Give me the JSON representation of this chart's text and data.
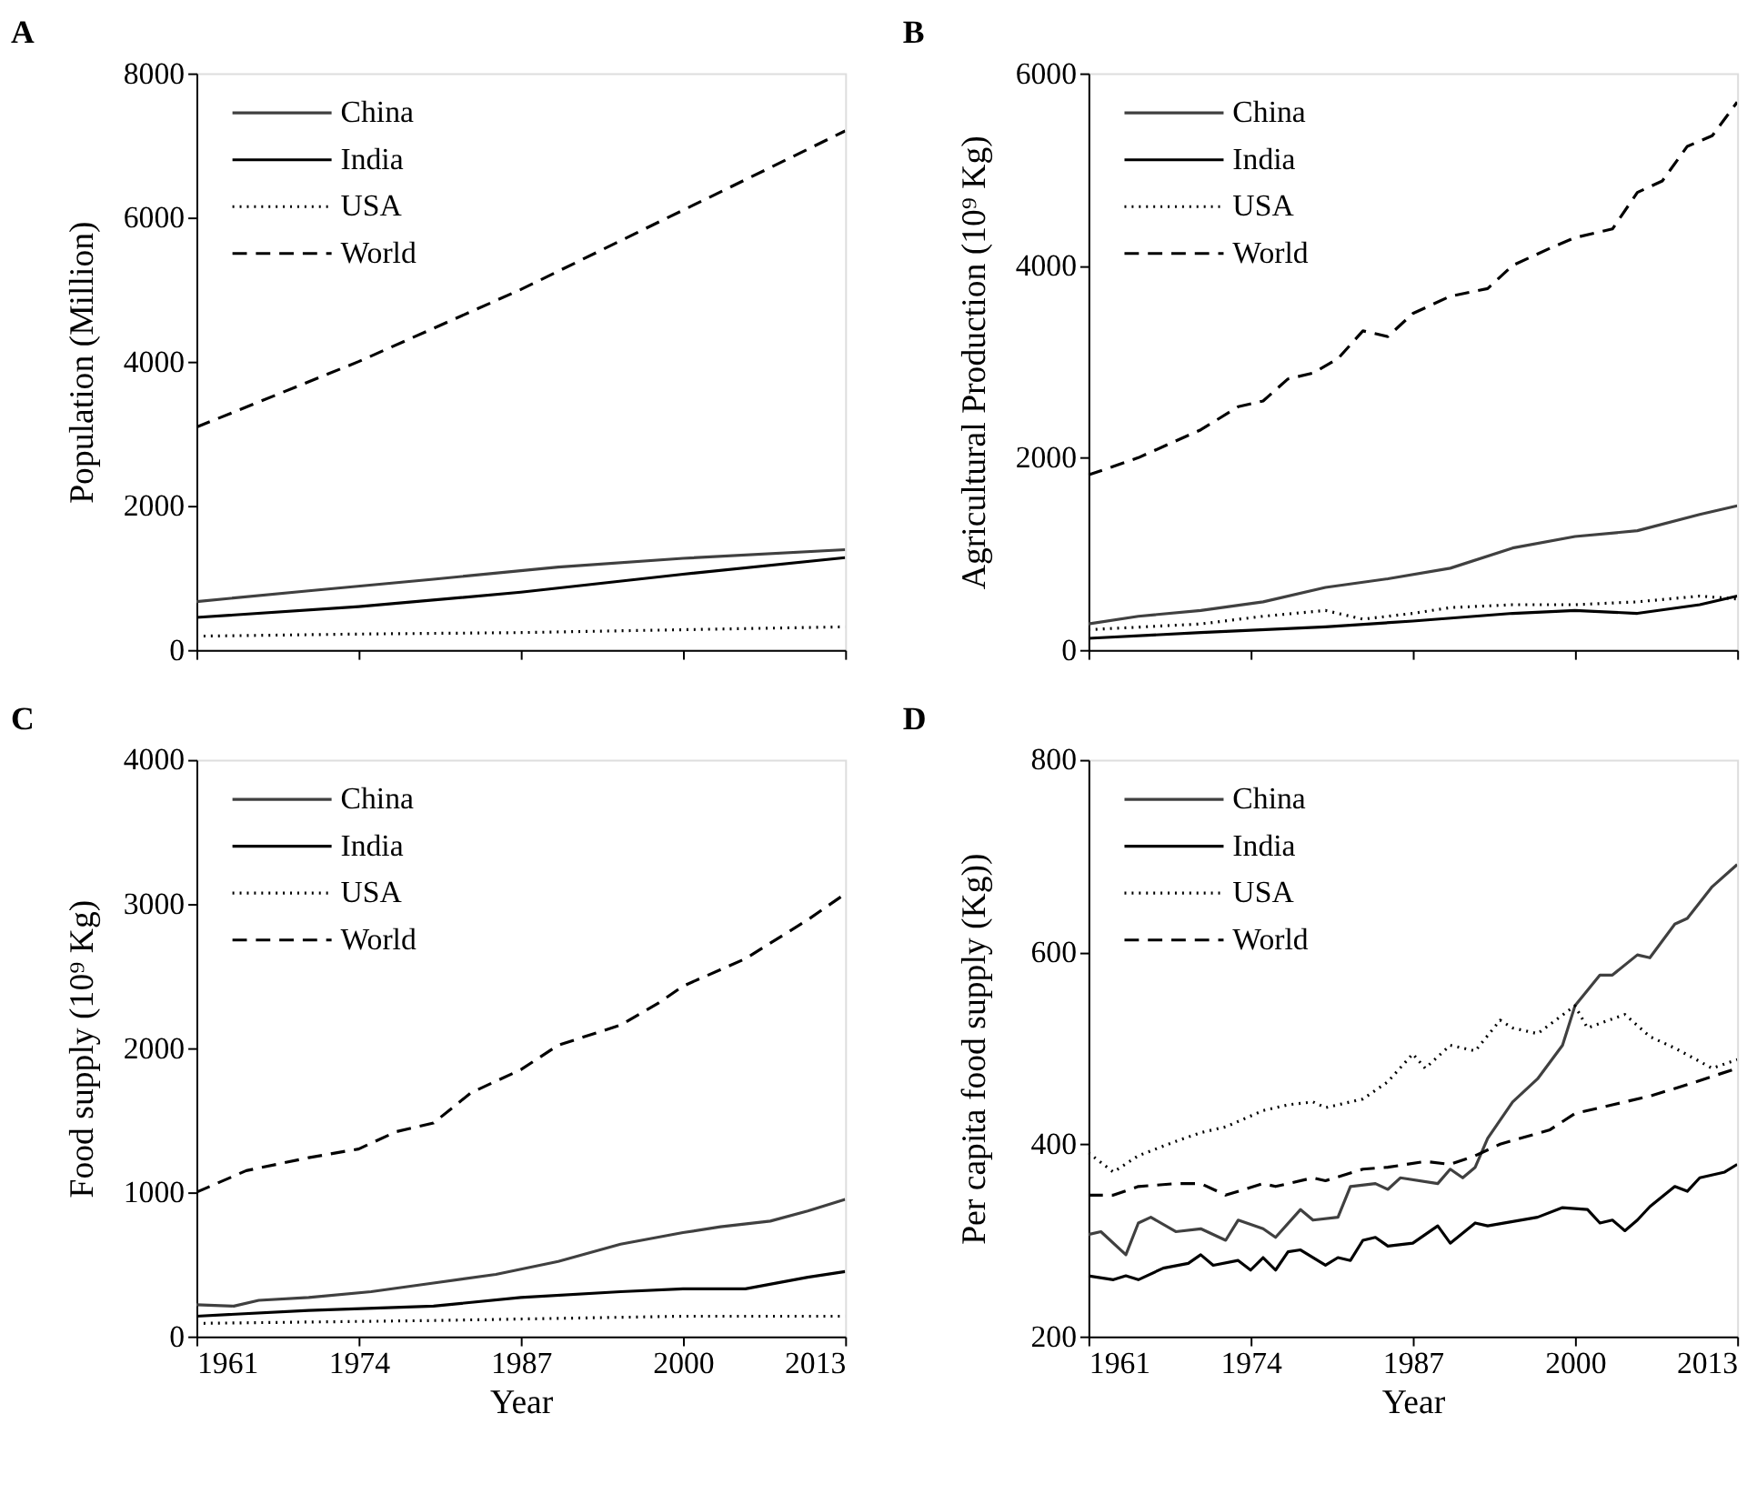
{
  "chart_data": [
    {
      "type": "line",
      "title": "A",
      "ylabel": "Population (Million)",
      "xlim": [
        1961,
        2013
      ],
      "xticks": [
        1961,
        1974,
        1987,
        2000,
        2013
      ],
      "ylim": [
        0,
        8000
      ],
      "yticks": [
        0,
        2000,
        4000,
        6000,
        8000
      ],
      "tick_labels": "y",
      "grid": false,
      "legend": "top left",
      "series": [
        {
          "name": "China",
          "color": "#404040",
          "line_style": "solid",
          "x": [
            1961,
            1970,
            1980,
            1990,
            2000,
            2013
          ],
          "values": [
            670,
            820,
            980,
            1150,
            1270,
            1390
          ]
        },
        {
          "name": "India",
          "color": "#000000",
          "line_style": "solid",
          "x": [
            1961,
            1974,
            1987,
            2000,
            2013
          ],
          "values": [
            450,
            600,
            800,
            1050,
            1280
          ]
        },
        {
          "name": "USA",
          "color": "#000000",
          "line_style": "dotted",
          "x": [
            1961,
            1974,
            1987,
            2000,
            2013
          ],
          "values": [
            190,
            220,
            240,
            280,
            320
          ]
        },
        {
          "name": "World",
          "color": "#000000",
          "line_style": "dashed",
          "x": [
            1961,
            1974,
            1987,
            2000,
            2013
          ],
          "values": [
            3090,
            4000,
            5000,
            6100,
            7200
          ]
        }
      ]
    },
    {
      "type": "line",
      "title": "B",
      "ylabel": "Agricultural Production (10⁹ Kg)",
      "xlim": [
        1961,
        2013
      ],
      "xticks": [
        1961,
        1974,
        1987,
        2000,
        2013
      ],
      "ylim": [
        0,
        6000
      ],
      "yticks": [
        0,
        2000,
        4000,
        6000
      ],
      "tick_labels": "y",
      "grid": false,
      "legend": "top left",
      "series": [
        {
          "name": "China",
          "color": "#404040",
          "line_style": "solid",
          "x": [
            1961,
            1965,
            1970,
            1975,
            1980,
            1985,
            1990,
            1995,
            2000,
            2005,
            2010,
            2013
          ],
          "values": [
            270,
            350,
            410,
            500,
            650,
            740,
            850,
            1060,
            1180,
            1240,
            1410,
            1500
          ]
        },
        {
          "name": "India",
          "color": "#000000",
          "line_style": "solid",
          "x": [
            1961,
            1970,
            1980,
            1987,
            1995,
            2000,
            2005,
            2010,
            2013
          ],
          "values": [
            120,
            180,
            240,
            300,
            380,
            410,
            380,
            470,
            560
          ]
        },
        {
          "name": "USA",
          "color": "#000000",
          "line_style": "dotted",
          "x": [
            1961,
            1970,
            1975,
            1980,
            1983,
            1987,
            1990,
            1995,
            2000,
            2005,
            2010,
            2013
          ],
          "values": [
            210,
            270,
            350,
            410,
            320,
            380,
            440,
            470,
            470,
            500,
            560,
            530
          ]
        },
        {
          "name": "World",
          "color": "#000000",
          "line_style": "dashed",
          "x": [
            1961,
            1965,
            1970,
            1973,
            1975,
            1977,
            1979,
            1981,
            1983,
            1985,
            1987,
            1990,
            1993,
            1995,
            1998,
            2000,
            2003,
            2005,
            2007,
            2009,
            2011,
            2013
          ],
          "values": [
            1820,
            2000,
            2290,
            2530,
            2590,
            2820,
            2880,
            3030,
            3320,
            3260,
            3500,
            3680,
            3760,
            4000,
            4180,
            4290,
            4380,
            4760,
            4880,
            5240,
            5350,
            5700
          ]
        }
      ]
    },
    {
      "type": "line",
      "title": "C",
      "xlabel": "Year",
      "ylabel": "Food supply (10⁹ Kg)",
      "xlim": [
        1961,
        2013
      ],
      "xticks": [
        1961,
        1974,
        1987,
        2000,
        2013
      ],
      "ylim": [
        0,
        4000
      ],
      "yticks": [
        0,
        1000,
        2000,
        3000,
        4000
      ],
      "grid": false,
      "legend": "top left",
      "series": [
        {
          "name": "China",
          "color": "#404040",
          "line_style": "solid",
          "x": [
            1961,
            1964,
            1966,
            1970,
            1975,
            1980,
            1985,
            1990,
            1995,
            2000,
            2003,
            2007,
            2010,
            2013
          ],
          "values": [
            220,
            210,
            250,
            270,
            310,
            370,
            430,
            520,
            640,
            720,
            760,
            800,
            870,
            950
          ]
        },
        {
          "name": "India",
          "color": "#000000",
          "line_style": "solid",
          "x": [
            1961,
            1970,
            1980,
            1987,
            1995,
            2000,
            2005,
            2010,
            2013
          ],
          "values": [
            140,
            180,
            210,
            270,
            310,
            330,
            330,
            410,
            450
          ]
        },
        {
          "name": "USA",
          "color": "#000000",
          "line_style": "dotted",
          "x": [
            1961,
            1980,
            2000,
            2013
          ],
          "values": [
            90,
            110,
            140,
            140
          ]
        },
        {
          "name": "World",
          "color": "#000000",
          "line_style": "dashed",
          "x": [
            1961,
            1965,
            1970,
            1974,
            1977,
            1980,
            1983,
            1987,
            1990,
            1995,
            1998,
            2000,
            2005,
            2010,
            2013
          ],
          "values": [
            1000,
            1150,
            1240,
            1300,
            1420,
            1480,
            1690,
            1850,
            2020,
            2160,
            2310,
            2430,
            2620,
            2890,
            3070
          ]
        }
      ]
    },
    {
      "type": "line",
      "title": "D",
      "xlabel": "Year",
      "ylabel": "Per capita food supply (Kg))",
      "xlim": [
        1961,
        2013
      ],
      "xticks": [
        1961,
        1974,
        1987,
        2000,
        2013
      ],
      "ylim": [
        200,
        800
      ],
      "yticks": [
        200,
        400,
        600,
        800
      ],
      "grid": false,
      "legend": "top left",
      "series": [
        {
          "name": "China",
          "color": "#404040",
          "line_style": "solid",
          "x": [
            1961,
            1962,
            1964,
            1965,
            1966,
            1968,
            1970,
            1972,
            1973,
            1975,
            1976,
            1978,
            1979,
            1981,
            1982,
            1984,
            1985,
            1986,
            1989,
            1990,
            1991,
            1992,
            1993,
            1995,
            1997,
            1999,
            2000,
            2002,
            2003,
            2005,
            2006,
            2008,
            2009,
            2011,
            2013
          ],
          "values": [
            306,
            309,
            285,
            318,
            324,
            309,
            312,
            300,
            321,
            312,
            303,
            332,
            321,
            324,
            356,
            359,
            353,
            365,
            359,
            374,
            365,
            376,
            406,
            444,
            468,
            503,
            544,
            576,
            576,
            597,
            594,
            629,
            635,
            668,
            691
          ]
        },
        {
          "name": "India",
          "color": "#000000",
          "line_style": "solid",
          "x": [
            1961,
            1963,
            1964,
            1965,
            1967,
            1969,
            1970,
            1971,
            1973,
            1974,
            1975,
            1976,
            1977,
            1978,
            1980,
            1981,
            1982,
            1983,
            1984,
            1985,
            1987,
            1989,
            1990,
            1992,
            1993,
            1997,
            1999,
            2001,
            2002,
            2003,
            2004,
            2005,
            2006,
            2008,
            2009,
            2010,
            2012,
            2013
          ],
          "values": [
            263,
            259,
            263,
            259,
            271,
            276,
            285,
            274,
            279,
            269,
            282,
            269,
            288,
            290,
            274,
            282,
            279,
            300,
            303,
            294,
            297,
            315,
            297,
            318,
            315,
            324,
            334,
            332,
            318,
            321,
            310,
            321,
            335,
            356,
            351,
            365,
            371,
            379
          ]
        },
        {
          "name": "USA",
          "color": "#000000",
          "line_style": "dotted",
          "x": [
            1961,
            1963,
            1965,
            1968,
            1970,
            1972,
            1975,
            1977,
            1979,
            1980,
            1983,
            1985,
            1987,
            1988,
            1990,
            1992,
            1994,
            1995,
            1997,
            2000,
            2001,
            2004,
            2006,
            2008,
            2011,
            2013
          ],
          "values": [
            391,
            371,
            388,
            403,
            412,
            418,
            435,
            441,
            444,
            438,
            447,
            465,
            494,
            479,
            503,
            497,
            529,
            521,
            515,
            544,
            521,
            535,
            512,
            500,
            479,
            488
          ]
        },
        {
          "name": "World",
          "color": "#000000",
          "line_style": "dashed",
          "x": [
            1961,
            1963,
            1965,
            1968,
            1970,
            1972,
            1975,
            1976,
            1979,
            1980,
            1983,
            1985,
            1988,
            1990,
            1992,
            1994,
            1998,
            2000,
            2003,
            2006,
            2009,
            2013
          ],
          "values": [
            347,
            347,
            356,
            359,
            359,
            347,
            359,
            356,
            365,
            362,
            374,
            376,
            382,
            379,
            388,
            400,
            415,
            432,
            441,
            450,
            462,
            479
          ]
        }
      ]
    }
  ]
}
